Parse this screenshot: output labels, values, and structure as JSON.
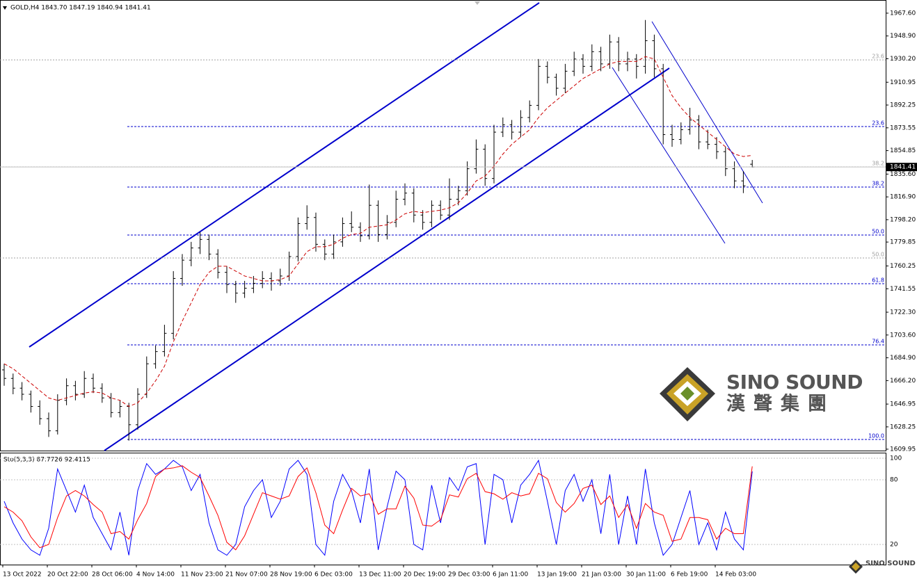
{
  "chart_data": [
    {
      "type": "candlestick",
      "title": "GOLD,H4  1843.70 1847.19 1840.94 1841.41",
      "color": "#000000",
      "categories": [
        "13 Oct 2022",
        null,
        null,
        null,
        null,
        "20 Oct 22:00",
        null,
        null,
        null,
        null,
        "28 Oct 06:00",
        null,
        null,
        null,
        null,
        "4 Nov 14:00",
        null,
        null,
        null,
        null,
        "11 Nov 23:00",
        null,
        null,
        null,
        null,
        "21 Nov 07:00",
        null,
        null,
        null,
        null,
        "28 Nov 19:00",
        null,
        null,
        null,
        null,
        "6 Dec 03:00",
        null,
        null,
        null,
        null,
        "13 Dec 11:00",
        null,
        null,
        null,
        null,
        "20 Dec 19:00",
        null,
        null,
        null,
        null,
        "29 Dec 03:00",
        null,
        null,
        null,
        null,
        "6 Jan 11:00",
        null,
        null,
        null,
        null,
        "13 Jan 19:00",
        null,
        null,
        null,
        null,
        "21 Jan 03:00",
        null,
        null,
        null,
        null,
        "30 Jan 11:00",
        null,
        null,
        null,
        null,
        "6 Feb 19:00",
        null,
        null,
        null,
        null,
        "14 Feb 03:00",
        null,
        null,
        null,
        null
      ],
      "open": [
        1675,
        1668,
        1660,
        1655,
        1645,
        1635,
        1625,
        1650,
        1662,
        1655,
        1668,
        1660,
        1652,
        1640,
        1645,
        1630,
        1655,
        1680,
        1690,
        1705,
        1750,
        1765,
        1775,
        1782,
        1770,
        1755,
        1745,
        1738,
        1742,
        1746,
        1750,
        1748,
        1752,
        1768,
        1795,
        1800,
        1778,
        1770,
        1780,
        1795,
        1792,
        1785,
        1810,
        1786,
        1796,
        1815,
        1820,
        1802,
        1796,
        1810,
        1802,
        1815,
        1822,
        1840,
        1856,
        1832,
        1870,
        1876,
        1870,
        1882,
        1892,
        1924,
        1915,
        1906,
        1920,
        1930,
        1924,
        1936,
        1926,
        1944,
        1926,
        1930,
        1924,
        1945,
        1922,
        1868,
        1864,
        1872,
        1880,
        1862,
        1860,
        1854,
        1840,
        1830,
        1843.7
      ],
      "high": [
        1680,
        1672,
        1665,
        1658,
        1650,
        1640,
        1655,
        1668,
        1666,
        1674,
        1672,
        1664,
        1656,
        1650,
        1648,
        1660,
        1686,
        1695,
        1712,
        1756,
        1770,
        1780,
        1788,
        1786,
        1774,
        1760,
        1748,
        1748,
        1752,
        1756,
        1755,
        1758,
        1772,
        1800,
        1810,
        1804,
        1782,
        1786,
        1800,
        1805,
        1796,
        1827,
        1814,
        1802,
        1822,
        1828,
        1824,
        1806,
        1814,
        1814,
        1832,
        1826,
        1846,
        1864,
        1860,
        1876,
        1882,
        1880,
        1888,
        1896,
        1930,
        1928,
        1918,
        1926,
        1936,
        1934,
        1942,
        1940,
        1950,
        1948,
        1936,
        1934,
        1962,
        1950,
        1926,
        1876,
        1878,
        1890,
        1884,
        1872,
        1866,
        1858,
        1846,
        1838,
        1847.19
      ],
      "low": [
        1662,
        1655,
        1650,
        1640,
        1630,
        1620,
        1622,
        1646,
        1650,
        1652,
        1656,
        1648,
        1636,
        1636,
        1617,
        1626,
        1652,
        1676,
        1686,
        1700,
        1744,
        1760,
        1770,
        1765,
        1750,
        1738,
        1730,
        1734,
        1738,
        1742,
        1740,
        1744,
        1748,
        1764,
        1790,
        1772,
        1765,
        1766,
        1776,
        1788,
        1780,
        1782,
        1780,
        1782,
        1792,
        1810,
        1796,
        1790,
        1792,
        1798,
        1798,
        1810,
        1818,
        1836,
        1826,
        1828,
        1866,
        1864,
        1866,
        1878,
        1888,
        1910,
        1900,
        1902,
        1916,
        1918,
        1920,
        1920,
        1922,
        1920,
        1920,
        1914,
        1918,
        1915,
        1860,
        1858,
        1860,
        1868,
        1856,
        1856,
        1848,
        1834,
        1824,
        1820,
        1840.94
      ],
      "close": [
        1668,
        1660,
        1655,
        1645,
        1635,
        1625,
        1650,
        1662,
        1655,
        1668,
        1660,
        1652,
        1640,
        1645,
        1630,
        1655,
        1680,
        1690,
        1705,
        1750,
        1765,
        1775,
        1782,
        1770,
        1755,
        1745,
        1738,
        1742,
        1746,
        1750,
        1748,
        1752,
        1768,
        1795,
        1800,
        1778,
        1770,
        1780,
        1795,
        1792,
        1785,
        1810,
        1786,
        1796,
        1815,
        1820,
        1802,
        1796,
        1810,
        1802,
        1815,
        1822,
        1840,
        1856,
        1832,
        1870,
        1876,
        1870,
        1882,
        1892,
        1924,
        1915,
        1906,
        1920,
        1930,
        1924,
        1936,
        1926,
        1944,
        1926,
        1930,
        1924,
        1945,
        1922,
        1868,
        1864,
        1872,
        1880,
        1862,
        1860,
        1854,
        1840,
        1830,
        1826,
        1841.41
      ],
      "moving_average": {
        "color": "#cc0000",
        "values": [
          1680,
          1676,
          1670,
          1664,
          1658,
          1652,
          1650,
          1652,
          1654,
          1656,
          1657,
          1656,
          1652,
          1650,
          1645,
          1648,
          1656,
          1666,
          1678,
          1698,
          1715,
          1730,
          1745,
          1755,
          1760,
          1760,
          1756,
          1752,
          1750,
          1748,
          1748,
          1749,
          1752,
          1762,
          1772,
          1776,
          1776,
          1778,
          1783,
          1786,
          1787,
          1792,
          1793,
          1794,
          1798,
          1803,
          1805,
          1804,
          1805,
          1806,
          1808,
          1812,
          1820,
          1830,
          1834,
          1842,
          1852,
          1860,
          1866,
          1872,
          1882,
          1890,
          1896,
          1902,
          1908,
          1914,
          1918,
          1922,
          1926,
          1928,
          1928,
          1928,
          1932,
          1930,
          1915,
          1900,
          1890,
          1882,
          1876,
          1870,
          1864,
          1858,
          1852,
          1850,
          1851
        ]
      },
      "ylim": [
        1608.8,
        1978.4
      ],
      "yticks": [
        {
          "value": 1967.6,
          "label": "1967.60"
        },
        {
          "value": 1948.9,
          "label": "1948.90"
        },
        {
          "value": 1930.2,
          "label": "1930.20"
        },
        {
          "value": 1910.95,
          "label": "1910.95"
        },
        {
          "value": 1892.25,
          "label": "1892.25"
        },
        {
          "value": 1873.55,
          "label": "1873.55"
        },
        {
          "value": 1854.85,
          "label": "1854.85"
        },
        {
          "value": 1835.6,
          "label": "1835.60"
        },
        {
          "value": 1816.9,
          "label": "1816.90"
        },
        {
          "value": 1798.2,
          "label": "1798.20"
        },
        {
          "value": 1779.85,
          "label": "1779.85"
        },
        {
          "value": 1760.25,
          "label": "1760.25"
        },
        {
          "value": 1741.55,
          "label": "1741.55"
        },
        {
          "value": 1722.3,
          "label": "1722.30"
        },
        {
          "value": 1703.6,
          "label": "1703.60"
        },
        {
          "value": 1684.9,
          "label": "1684.90"
        },
        {
          "value": 1666.2,
          "label": "1666.20"
        },
        {
          "value": 1646.95,
          "label": "1646.95"
        },
        {
          "value": 1628.25,
          "label": "1628.25"
        },
        {
          "value": 1609.95,
          "label": "1609.95"
        }
      ],
      "current_price": 1841.41,
      "fib_levels": [
        {
          "label": "23.6",
          "price": 1929.3,
          "color": "#a0a0a0"
        },
        {
          "label": "23.6",
          "price": 1874.6,
          "color": "#0000cc"
        },
        {
          "label": "38.2",
          "price": 1841.5,
          "color": "#a0a0a0"
        },
        {
          "label": "38.2",
          "price": 1825.0,
          "color": "#0000cc"
        },
        {
          "label": "50.0",
          "price": 1785.6,
          "color": "#0000cc"
        },
        {
          "label": "50.0",
          "price": 1766.8,
          "color": "#a0a0a0"
        },
        {
          "label": "61.8",
          "price": 1745.7,
          "color": "#0000cc"
        },
        {
          "label": "76.4",
          "price": 1695.5,
          "color": "#0000cc"
        },
        {
          "label": "100.0",
          "price": 1617.9,
          "color": "#0000cc"
        }
      ]
    },
    {
      "type": "line",
      "title": "Sto(5,3,3) 87.7726 92.4115",
      "series": [
        {
          "color": "#0000ff",
          "values": [
            60,
            40,
            25,
            15,
            10,
            35,
            90,
            70,
            50,
            75,
            45,
            30,
            15,
            50,
            10,
            70,
            95,
            85,
            90,
            98,
            92,
            70,
            85,
            40,
            15,
            10,
            20,
            55,
            70,
            80,
            45,
            60,
            90,
            98,
            85,
            20,
            10,
            60,
            85,
            70,
            40,
            90,
            15,
            55,
            88,
            80,
            20,
            15,
            75,
            40,
            82,
            70,
            92,
            95,
            20,
            85,
            80,
            40,
            75,
            85,
            98,
            60,
            20,
            70,
            85,
            60,
            80,
            30,
            85,
            20,
            65,
            20,
            90,
            40,
            10,
            20,
            45,
            70,
            20,
            40,
            15,
            50,
            25,
            15,
            87.7726
          ]
        },
        {
          "color": "#ff0000",
          "values": [
            55,
            50,
            42,
            27,
            17,
            20,
            45,
            65,
            70,
            65,
            57,
            50,
            30,
            32,
            25,
            43,
            58,
            83,
            90,
            91,
            93,
            87,
            82,
            65,
            47,
            22,
            15,
            28,
            48,
            68,
            65,
            62,
            65,
            83,
            91,
            68,
            38,
            30,
            52,
            72,
            65,
            67,
            48,
            53,
            53,
            74,
            63,
            38,
            37,
            43,
            66,
            64,
            81,
            86,
            69,
            67,
            62,
            68,
            65,
            67,
            86,
            81,
            59,
            50,
            58,
            72,
            75,
            57,
            65,
            45,
            57,
            35,
            58,
            50,
            47,
            23,
            25,
            45,
            45,
            43,
            25,
            35,
            30,
            30,
            92.4115
          ]
        }
      ],
      "ylim": [
        1.3,
        104.5
      ],
      "yticks": [
        100,
        80,
        20
      ]
    }
  ],
  "watermark": {
    "brand": "SINO SOUND",
    "chinese": "漢聲集團",
    "small": "SINO SOUND"
  }
}
